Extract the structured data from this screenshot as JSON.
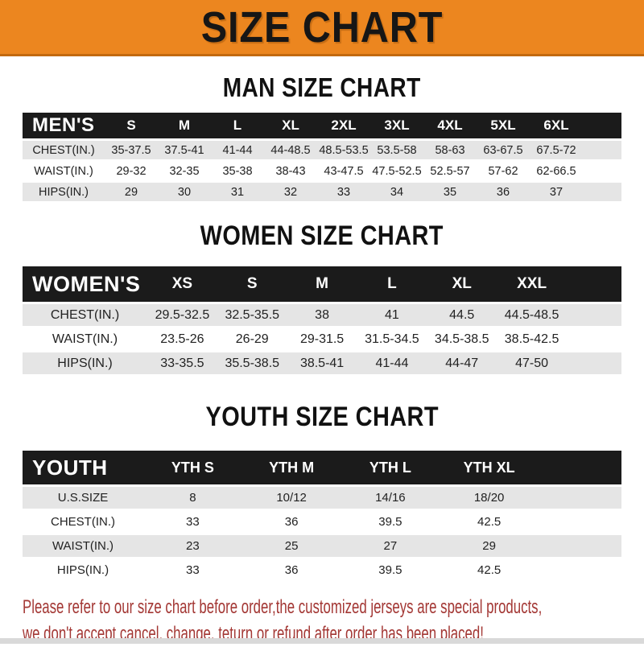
{
  "banner": {
    "title": "SIZE CHART"
  },
  "tables": [
    {
      "title": "MAN SIZE CHART",
      "header_label": "MEN'S",
      "columns": [
        "S",
        "M",
        "L",
        "XL",
        "2XL",
        "3XL",
        "4XL",
        "5XL",
        "6XL"
      ],
      "rows": [
        {
          "label": "CHEST(IN.)",
          "values": [
            "35-37.5",
            "37.5-41",
            "41-44",
            "44-48.5",
            "48.5-53.5",
            "53.5-58",
            "58-63",
            "63-67.5",
            "67.5-72"
          ]
        },
        {
          "label": "WAIST(IN.)",
          "values": [
            "29-32",
            "32-35",
            "35-38",
            "38-43",
            "43-47.5",
            "47.5-52.5",
            "52.5-57",
            "57-62",
            "62-66.5"
          ]
        },
        {
          "label": "HIPS(IN.)",
          "values": [
            "29",
            "30",
            "31",
            "32",
            "33",
            "34",
            "35",
            "36",
            "37"
          ]
        }
      ]
    },
    {
      "title": "WOMEN SIZE CHART",
      "header_label": "WOMEN'S",
      "columns": [
        "XS",
        "S",
        "M",
        "L",
        "XL",
        "XXL"
      ],
      "rows": [
        {
          "label": "CHEST(IN.)",
          "values": [
            "29.5-32.5",
            "32.5-35.5",
            "38",
            "41",
            "44.5",
            "44.5-48.5"
          ]
        },
        {
          "label": "WAIST(IN.)",
          "values": [
            "23.5-26",
            "26-29",
            "29-31.5",
            "31.5-34.5",
            "34.5-38.5",
            "38.5-42.5"
          ]
        },
        {
          "label": "HIPS(IN.)",
          "values": [
            "33-35.5",
            "35.5-38.5",
            "38.5-41",
            "41-44",
            "44-47",
            "47-50"
          ]
        }
      ]
    },
    {
      "title": "YOUTH SIZE CHART",
      "header_label": "YOUTH",
      "columns": [
        "YTH S",
        "YTH M",
        "YTH L",
        "YTH XL"
      ],
      "rows": [
        {
          "label": "U.S.SIZE",
          "values": [
            "8",
            "10/12",
            "14/16",
            "18/20"
          ]
        },
        {
          "label": "CHEST(IN.)",
          "values": [
            "33",
            "36",
            "39.5",
            "42.5"
          ]
        },
        {
          "label": "WAIST(IN.)",
          "values": [
            "23",
            "25",
            "27",
            "29"
          ]
        },
        {
          "label": "HIPS(IN.)",
          "values": [
            "33",
            "36",
            "39.5",
            "42.5"
          ]
        }
      ]
    }
  ],
  "footer": {
    "line1": "Please refer to our size chart before order,the customized jerseys are special products,",
    "line2": "we don't accept cancel, change, teturn or refund after order has been placed!"
  },
  "colors": {
    "banner-bg": "#EC861F",
    "banner-border": "#C2690F",
    "banner-text": "#161616",
    "bar-bg": "#1B1B1B",
    "bar-text": "#FFFFFF",
    "row-shade": "#E5E5E5",
    "row-white": "#FFFFFF",
    "cell-text": "#222222",
    "footer-text": "#A33734",
    "bottom-strip": "#D9D9D9",
    "title-text": "#111111"
  }
}
